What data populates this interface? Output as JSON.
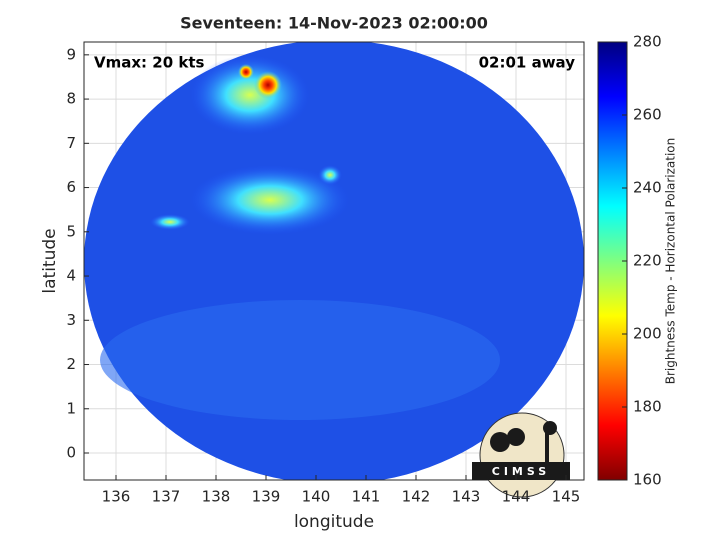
{
  "chart_data": {
    "type": "image",
    "title": "Seventeen: 14-Nov-2023 02:00:00",
    "xlabel": "longitude",
    "ylabel": "latitude",
    "xlim": [
      135.36,
      145.36
    ],
    "xticks": [
      136,
      137,
      138,
      139,
      140,
      141,
      142,
      143,
      144,
      145
    ],
    "ylim": [
      -0.61,
      9.29
    ],
    "yticks": [
      0,
      1,
      2,
      3,
      4,
      5,
      6,
      7,
      8,
      9
    ],
    "grid": true,
    "annotations": [
      "Vmax: 20 kts",
      "02:01 away"
    ],
    "logo_text": "CIMSS",
    "colormap": "jet",
    "colorbar": {
      "label": "Brightness Temp - Horizontal Polarization",
      "lim": [
        160,
        280
      ],
      "ticks": [
        160,
        180,
        200,
        220,
        240,
        260,
        280
      ]
    }
  }
}
